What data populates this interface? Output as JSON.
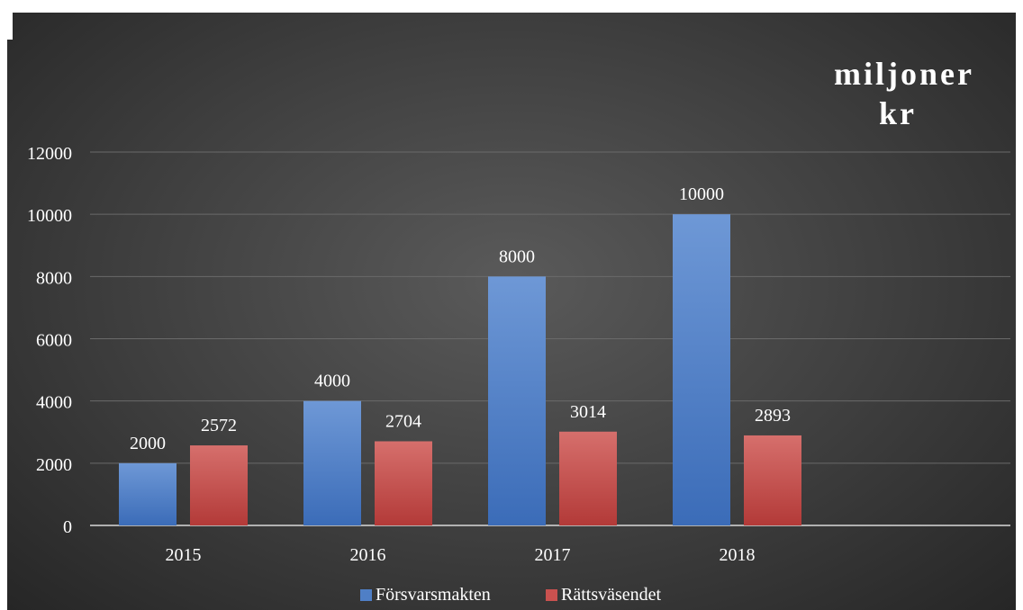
{
  "chart_data": {
    "type": "bar",
    "title_lines": [
      "miljoner",
      "kr"
    ],
    "categories": [
      "2015",
      "2016",
      "2017",
      "2018"
    ],
    "series": [
      {
        "name": "Försvarsmakten",
        "values": [
          2000,
          4000,
          8000,
          10000
        ],
        "color": "#4f7fc6"
      },
      {
        "name": "Rättsväsendet",
        "values": [
          2572,
          2704,
          3014,
          2893
        ],
        "color": "#c9514f"
      }
    ],
    "ylim": [
      0,
      12000
    ],
    "yticks": [
      "0",
      "2000",
      "4000",
      "6000",
      "8000",
      "10000",
      "12000"
    ],
    "grid": true,
    "legend_position": "bottom"
  }
}
